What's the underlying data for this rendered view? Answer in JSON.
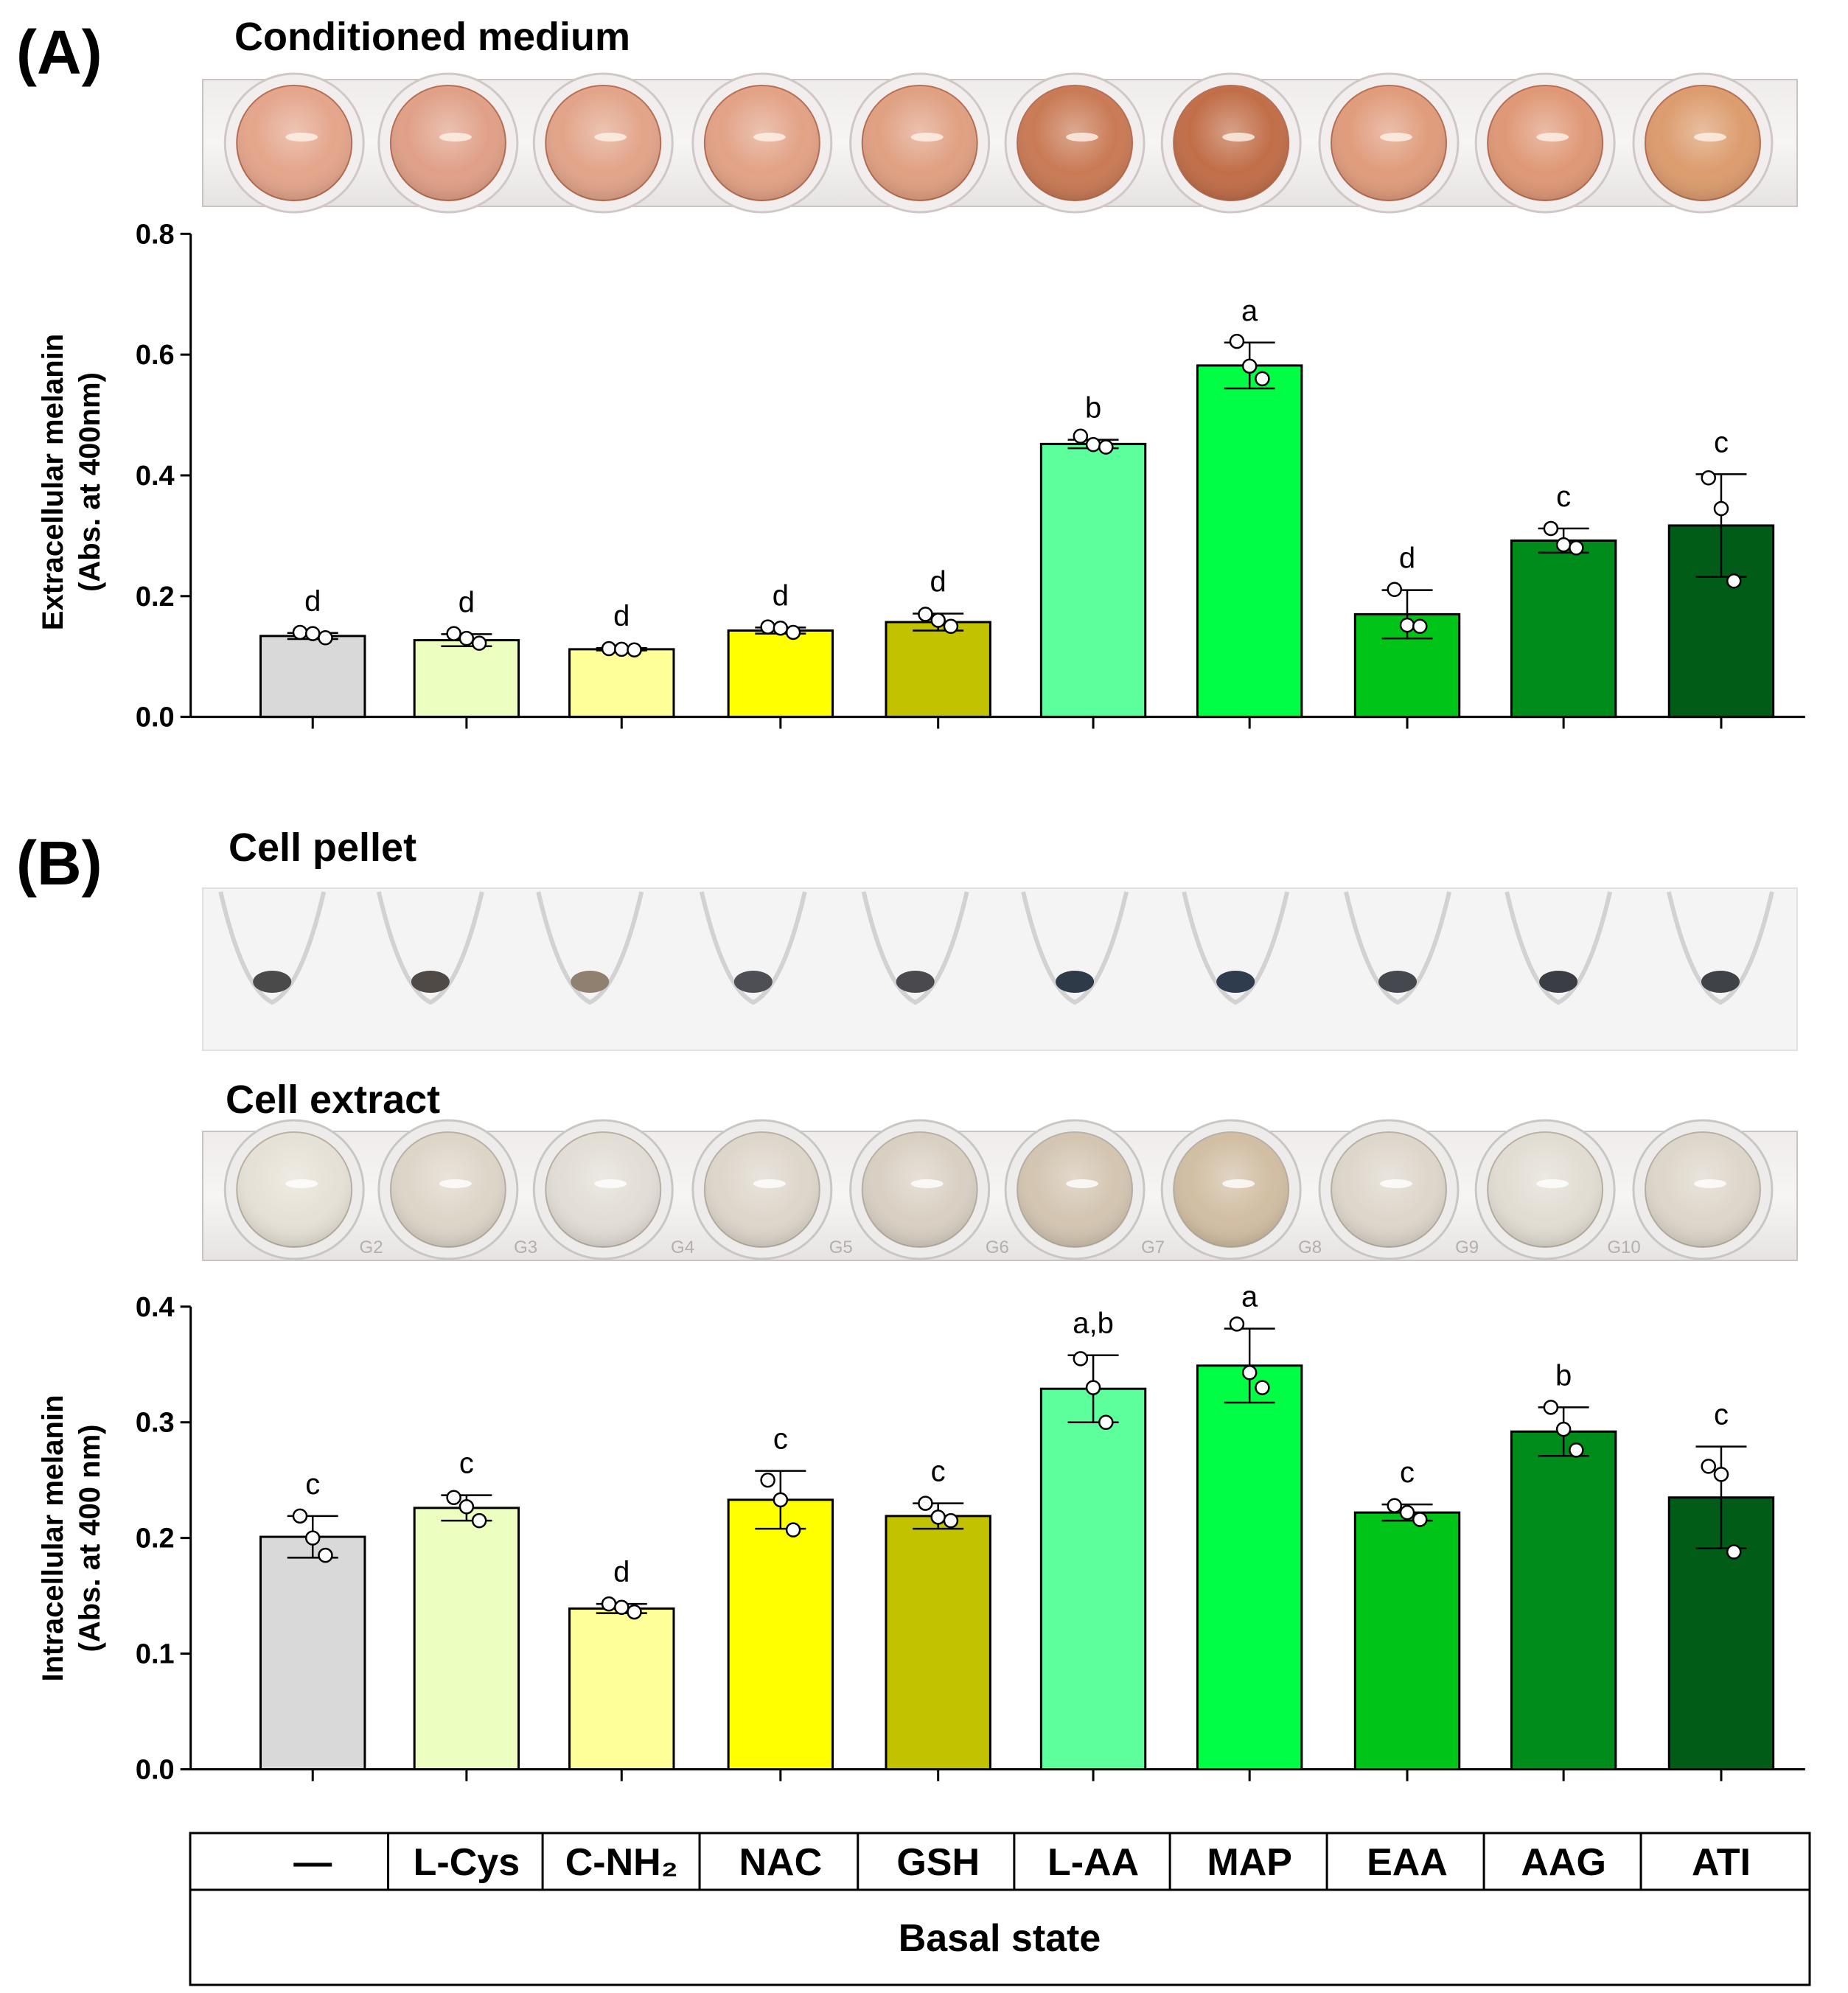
{
  "panels": {
    "a": {
      "label": "(A)",
      "photo_title": "Conditioned medium"
    },
    "b": {
      "label": "(B)",
      "photo_title_pellet": "Cell pellet",
      "photo_title_extract": "Cell extract"
    }
  },
  "well_plate_a": {
    "colors": [
      "#e4a58b",
      "#e0a087",
      "#e2a489",
      "#e2a286",
      "#e0a082",
      "#c97a55",
      "#c16e48",
      "#e09c7c",
      "#df9876",
      "#dc9c6e"
    ]
  },
  "pellet_strip": {
    "pellet_colors": [
      "#4a4a4a",
      "#4f4a45",
      "#8f8070",
      "#4d4f55",
      "#4a4a4e",
      "#2f3a48",
      "#2e3c4e",
      "#45484e",
      "#3a3e44",
      "#3f4246"
    ]
  },
  "well_plate_b": {
    "colors": [
      "#e6e1d6",
      "#ddd5c8",
      "#e2ddd5",
      "#ddd6cb",
      "#d9d0c3",
      "#d3c5b1",
      "#d1bea3",
      "#ddd6cb",
      "#e2ddd3",
      "#ddd6ca"
    ],
    "well_labels": [
      "G2",
      "G3",
      "G4",
      "G5",
      "G6",
      "G7",
      "G8",
      "G9",
      "G10"
    ]
  },
  "chart_data": [
    {
      "type": "bar",
      "ylabel_line1": "Extracellular melanin",
      "ylabel_line2": "(Abs. at 400nm)",
      "ylim": [
        0,
        0.8
      ],
      "yticks": [
        "0.0",
        "0.2",
        "0.4",
        "0.6",
        "0.8"
      ],
      "values": [
        0.134,
        0.127,
        0.112,
        0.143,
        0.157,
        0.452,
        0.582,
        0.17,
        0.292,
        0.317
      ],
      "errors": [
        0.005,
        0.01,
        0.002,
        0.005,
        0.014,
        0.007,
        0.038,
        0.04,
        0.02,
        0.085
      ],
      "points": [
        [
          0.14,
          0.138,
          0.131
        ],
        [
          0.138,
          0.13,
          0.122
        ],
        [
          0.113,
          0.112,
          0.111
        ],
        [
          0.149,
          0.147,
          0.14
        ],
        [
          0.17,
          0.16,
          0.15
        ],
        [
          0.465,
          0.451,
          0.447
        ],
        [
          0.622,
          0.581,
          0.56
        ],
        [
          0.211,
          0.152,
          0.15
        ],
        [
          0.312,
          0.285,
          0.28
        ],
        [
          0.396,
          0.345,
          0.225
        ]
      ],
      "sig_labels": [
        "d",
        "d",
        "d",
        "d",
        "d",
        "b",
        "a",
        "d",
        "c",
        "c"
      ],
      "colors": [
        "#d9d9d9",
        "#ecffc0",
        "#ffff99",
        "#ffff00",
        "#c2c200",
        "#5dff9c",
        "#00ff44",
        "#00c417",
        "#008c1b",
        "#005c16"
      ]
    },
    {
      "type": "bar",
      "ylabel_line1": "Intracellular melanin",
      "ylabel_line2": "(Abs. at 400 nm)",
      "ylim": [
        0,
        0.4
      ],
      "yticks": [
        "0.0",
        "0.1",
        "0.2",
        "0.3",
        "0.4"
      ],
      "values": [
        0.201,
        0.226,
        0.139,
        0.233,
        0.219,
        0.329,
        0.349,
        0.222,
        0.292,
        0.235
      ],
      "errors": [
        0.018,
        0.011,
        0.004,
        0.025,
        0.011,
        0.029,
        0.032,
        0.007,
        0.021,
        0.044
      ],
      "points": [
        [
          0.219,
          0.2,
          0.185
        ],
        [
          0.235,
          0.227,
          0.215
        ],
        [
          0.143,
          0.14,
          0.136
        ],
        [
          0.25,
          0.233,
          0.207
        ],
        [
          0.23,
          0.218,
          0.215
        ],
        [
          0.355,
          0.33,
          0.3
        ],
        [
          0.385,
          0.343,
          0.33
        ],
        [
          0.228,
          0.222,
          0.216
        ],
        [
          0.313,
          0.294,
          0.276
        ],
        [
          0.262,
          0.255,
          0.188
        ]
      ],
      "sig_labels": [
        "c",
        "c",
        "d",
        "c",
        "c",
        "a,b",
        "a",
        "c",
        "b",
        "c"
      ],
      "colors": [
        "#d9d9d9",
        "#ecffc0",
        "#ffff99",
        "#ffff00",
        "#c2c200",
        "#5dff9c",
        "#00ff44",
        "#00c417",
        "#008c1b",
        "#005c16"
      ]
    }
  ],
  "treatment_table": {
    "categories": [
      "—",
      "L-Cys",
      "C-NH₂",
      "NAC",
      "GSH",
      "L-AA",
      "MAP",
      "EAA",
      "AAG",
      "ATI"
    ],
    "footer": "Basal state"
  }
}
